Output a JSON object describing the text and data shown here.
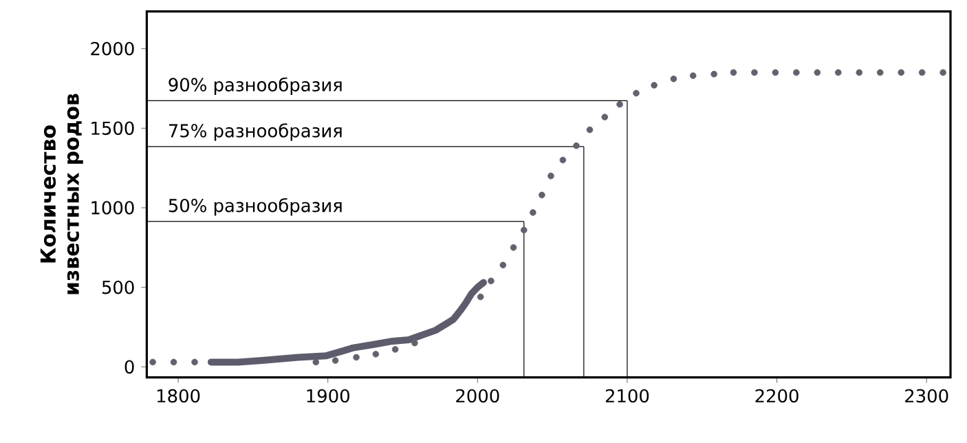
{
  "chart_data": {
    "type": "line",
    "ylabel": "Количество известных родов",
    "xlim": [
      1779,
      2316
    ],
    "ylim": [
      -66,
      2234
    ],
    "xticks": [
      1800,
      1900,
      2000,
      2100,
      2200,
      2300
    ],
    "yticks": [
      0,
      500,
      1000,
      1500,
      2000
    ],
    "grid": false,
    "series": [
      {
        "type": "scatter",
        "marker": "circle",
        "color": "#62626f",
        "x": [
          1783,
          1797,
          1811,
          1892,
          1905,
          1919,
          1932,
          1945,
          1958,
          2002,
          2009,
          2017,
          2024,
          2031,
          2037,
          2043,
          2049,
          2057,
          2066,
          2075,
          2085,
          2095,
          2106,
          2118,
          2131,
          2144,
          2158,
          2171,
          2185,
          2199,
          2213,
          2227,
          2241,
          2255,
          2269,
          2283,
          2297,
          2311
        ],
        "values": [
          30,
          30,
          30,
          30,
          40,
          60,
          80,
          110,
          150,
          440,
          540,
          640,
          750,
          860,
          970,
          1080,
          1200,
          1300,
          1390,
          1490,
          1570,
          1650,
          1720,
          1770,
          1810,
          1830,
          1840,
          1850,
          1850,
          1850,
          1850,
          1850,
          1850,
          1850,
          1850,
          1850,
          1850,
          1850
        ]
      },
      {
        "color": "#5c5c6c",
        "x": [
          1822,
          1840,
          1856,
          1880,
          1899,
          1917,
          1930,
          1942,
          1954,
          1963,
          1972,
          1979,
          1984,
          1989,
          1992,
          1996,
          2000,
          2004
        ],
        "values": [
          30,
          30,
          40,
          60,
          70,
          120,
          140,
          160,
          170,
          200,
          230,
          270,
          300,
          360,
          400,
          460,
          500,
          530
        ]
      }
    ],
    "ref_lines": [
      {
        "axis": "y",
        "value": 914,
        "label": "50% разнообразия"
      },
      {
        "axis": "x",
        "value": 2031
      },
      {
        "axis": "y",
        "value": 1384,
        "label": "75% разнообразия"
      },
      {
        "axis": "x",
        "value": 2071
      },
      {
        "axis": "y",
        "value": 1673,
        "label": "90% разнообразия"
      },
      {
        "axis": "x",
        "value": 2100
      }
    ]
  }
}
